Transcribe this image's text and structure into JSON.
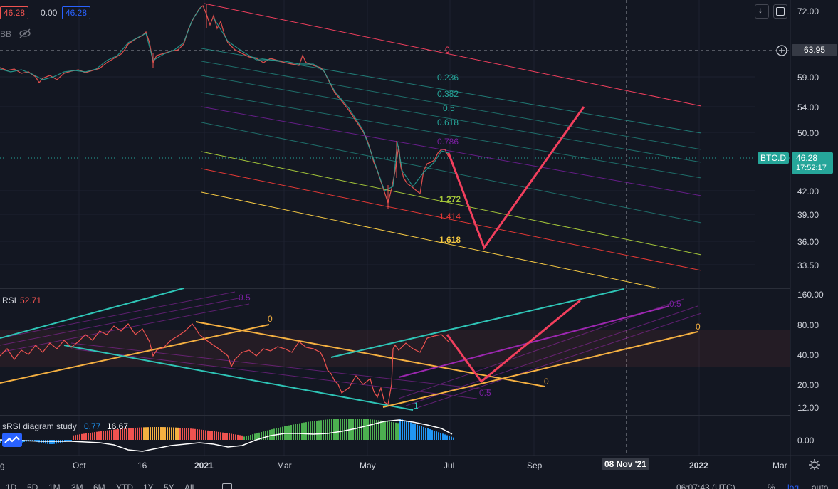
{
  "legend": {
    "open_value": "46.28",
    "change_value": "0.00",
    "close_value": "46.28",
    "bb_label": "BB"
  },
  "rsi": {
    "label": "RSI",
    "value": "52.71"
  },
  "srsi": {
    "label": "sRSI diagram study",
    "value1": "0.77",
    "value2": "16.67"
  },
  "price_axis": {
    "ticks": [
      "72.00",
      "59.00",
      "54.00",
      "50.00",
      "42.00",
      "39.00",
      "36.00",
      "33.50"
    ],
    "crosshair_value": "63.95",
    "symbol": "BTC.D",
    "last_price": "46.28",
    "countdown": "17:52:17"
  },
  "rsi_axis": {
    "ticks": [
      "160.00",
      "80.00",
      "40.00",
      "20.00",
      "12.00"
    ]
  },
  "srsi_axis": {
    "ticks": [
      "0.00"
    ]
  },
  "time_axis": {
    "ticks": [
      "g",
      "Oct",
      "16",
      "2021",
      "Mar",
      "May",
      "Jul",
      "Sep",
      "2022",
      "Mar"
    ],
    "crosshair_date": "08 Nov '21"
  },
  "fib_levels": {
    "top_zero": "0",
    "l0236": "0.236",
    "l0382": "0.382",
    "l05": "0.5",
    "l0618": "0.618",
    "l0786": "0.786",
    "l1272": "1.272",
    "l1414": "1.414",
    "l1618": "1.618"
  },
  "rsi_fib": {
    "zero_a": "0",
    "zero_b": "0",
    "zero_c": "0",
    "half_a": "0.5",
    "half_b": "0.5",
    "half_c": "0.5",
    "one": "1"
  },
  "bottom_toolbar": {
    "ranges": [
      "1D",
      "5D",
      "1M",
      "3M",
      "6M",
      "YTD",
      "1Y",
      "5Y",
      "All"
    ],
    "clock": "06:07:43 (UTC)",
    "percent": "%",
    "log": "log",
    "auto": "auto"
  },
  "colors": {
    "background": "#131722",
    "down": "#ef5350",
    "up": "#26a69a",
    "projection": "#f23f5d",
    "teal_channel": "#2ec4b6",
    "orange_channel": "#f5b041",
    "last_price_badge": "#26a69a"
  }
}
